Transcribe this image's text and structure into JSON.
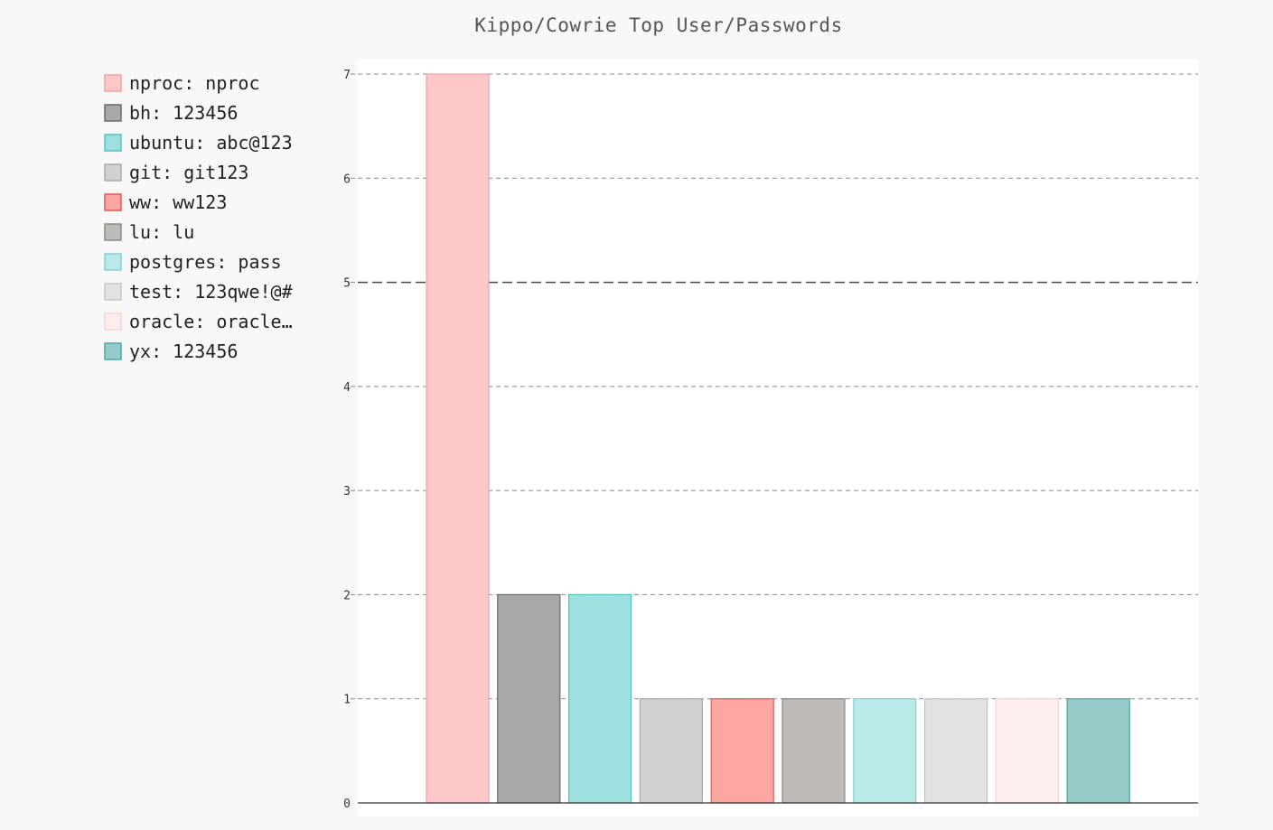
{
  "chart_data": {
    "type": "bar",
    "title": "Kippo/Cowrie Top User/Passwords",
    "xlabel": "",
    "ylabel": "",
    "ylim": [
      0,
      7
    ],
    "yticks": [
      0,
      1,
      2,
      3,
      4,
      5,
      6,
      7
    ],
    "grid": "horizontal dashed",
    "legend_position": "left",
    "series": [
      {
        "name": "nproc: nproc",
        "value": 7,
        "fill": "#fec8c8",
        "stroke": "#f3a0a6"
      },
      {
        "name": "bh: 123456",
        "value": 2,
        "fill": "#a8a8a6",
        "stroke": "#6a6a6a"
      },
      {
        "name": "ubuntu: abc@123",
        "value": 2,
        "fill": "#9ee0df",
        "stroke": "#55c2c0"
      },
      {
        "name": "git: git123",
        "value": 1,
        "fill": "#d1d2d0",
        "stroke": "#a9aaa8"
      },
      {
        "name": "ww: ww123",
        "value": 1,
        "fill": "#fea6a2",
        "stroke": "#e0595c"
      },
      {
        "name": "lu: lu",
        "value": 1,
        "fill": "#bdbab7",
        "stroke": "#8c8987"
      },
      {
        "name": "postgres: pass",
        "value": 1,
        "fill": "#b9e9e8",
        "stroke": "#85d2d0"
      },
      {
        "name": "test: 123qwe!@#",
        "value": 1,
        "fill": "#e2e2e2",
        "stroke": "#c4c4c4"
      },
      {
        "name": "oracle: oracle…",
        "value": 1,
        "fill": "#ffeeed",
        "stroke": "#f8d2d2"
      },
      {
        "name": "yx: 123456",
        "value": 1,
        "fill": "#96cbc9",
        "stroke": "#4ea6a3"
      }
    ]
  }
}
